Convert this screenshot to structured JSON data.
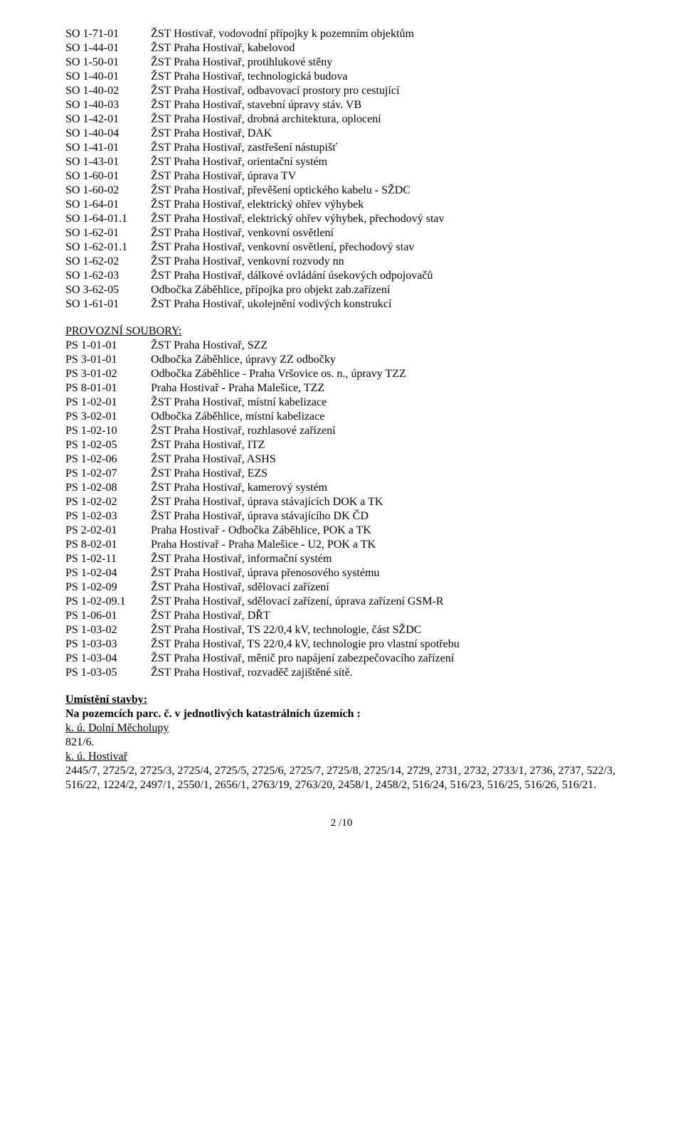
{
  "so_rows": [
    {
      "code": "SO 1-71-01",
      "desc": "ŽST Hostivař, vodovodní přípojky k pozemním objektům"
    },
    {
      "code": "SO 1-44-01",
      "desc": "ŽST Praha Hostivař, kabelovod"
    },
    {
      "code": "SO 1-50-01",
      "desc": "ŽST Praha Hostivař, protihlukové stěny"
    },
    {
      "code": "SO 1-40-01",
      "desc": "ŽST Praha Hostivař, technologická budova"
    },
    {
      "code": "SO 1-40-02",
      "desc": "ŽST Praha Hostivař, odbavovací prostory pro cestující"
    },
    {
      "code": "SO 1-40-03",
      "desc": "ŽST Praha Hostivař, stavební úpravy stáv. VB"
    },
    {
      "code": "SO 1-42-01",
      "desc": "ŽST Praha Hostivař, drobná architektura, oplocení"
    },
    {
      "code": "SO 1-40-04",
      "desc": "ŽST Praha Hostivař, DAK"
    },
    {
      "code": "SO 1-41-01",
      "desc": "ŽST Praha Hostivař, zastřešení nástupišť"
    },
    {
      "code": "SO 1-43-01",
      "desc": "ŽST Praha Hostivař, orientační systém"
    },
    {
      "code": "SO 1-60-01",
      "desc": "ŽST Praha Hostivař, úprava TV"
    },
    {
      "code": "SO 1-60-02",
      "desc": "ŽST Praha Hostivař, převěšení optického kabelu - SŽDC"
    },
    {
      "code": "SO 1-64-01",
      "desc": "ŽST Praha Hostivař, elektrický ohřev výhybek"
    },
    {
      "code": "SO 1-64-01.1",
      "desc": "ŽST Praha Hostivař, elektrický ohřev výhybek, přechodový stav"
    },
    {
      "code": "SO 1-62-01",
      "desc": "ŽST Praha Hostivař, venkovní osvětlení"
    },
    {
      "code": "SO 1-62-01.1",
      "desc": "ŽST Praha Hostivař, venkovní osvětlení, přechodový stav"
    },
    {
      "code": "SO 1-62-02",
      "desc": "ŽST Praha Hostivař, venkovní rozvody nn"
    },
    {
      "code": "SO 1-62-03",
      "desc": "ŽST Praha Hostivař, dálkové ovládání úsekových odpojovačů"
    },
    {
      "code": "SO 3-62-05",
      "desc": "Odbočka Záběhlice, přípojka pro objekt zab.zařízení"
    },
    {
      "code": "SO 1-61-01",
      "desc": "ŽST Praha Hostivař, ukolejnění vodivých konstrukcí"
    }
  ],
  "ps_header": "PROVOZNÍ SOUBORY:",
  "ps_rows": [
    {
      "code": "PS 1-01-01",
      "desc": "ŽST Praha Hostivař, SZZ"
    },
    {
      "code": "PS 3-01-01",
      "desc": "Odbočka Záběhlice, úpravy ZZ odbočky"
    },
    {
      "code": "PS 3-01-02",
      "desc": "Odbočka Záběhlice - Praha Vršovice os. n., úpravy TZZ"
    },
    {
      "code": "PS 8-01-01",
      "desc": "Praha Hostivař - Praha Malešice, TZZ"
    },
    {
      "code": "PS 1-02-01",
      "desc": "ŽST Praha Hostivař, místní kabelizace"
    },
    {
      "code": "PS 3-02-01",
      "desc": "Odbočka Záběhlice, místní kabelizace"
    },
    {
      "code": "PS 1-02-10",
      "desc": "ŽST Praha Hostivař, rozhlasové zařízení"
    },
    {
      "code": "PS 1-02-05",
      "desc": "ŽST Praha Hostivař, ITZ"
    },
    {
      "code": "PS 1-02-06",
      "desc": "ŽST Praha Hostivař, ASHS"
    },
    {
      "code": "PS 1-02-07",
      "desc": "ŽST Praha Hostivař, EZS"
    },
    {
      "code": "PS 1-02-08",
      "desc": "ŽST Praha Hostivař, kamerový systém"
    },
    {
      "code": "PS 1-02-02",
      "desc": "ŽST Praha Hostivař, úprava stávajících DOK a TK"
    },
    {
      "code": "PS 1-02-03",
      "desc": "ŽST Praha Hostivař, úprava stávajícího DK ČD"
    },
    {
      "code": "PS 2-02-01",
      "desc": "Praha Hostivař - Odbočka Záběhlice, POK a TK"
    },
    {
      "code": "PS 8-02-01",
      "desc": "Praha Hostivař - Praha Malešice - U2, POK a TK"
    },
    {
      "code": "PS 1-02-11",
      "desc": "ŽST Praha Hostivař, informační systém"
    },
    {
      "code": "PS 1-02-04",
      "desc": "ŽST Praha Hostivař, úprava přenosového systému"
    },
    {
      "code": "PS 1-02-09",
      "desc": "ŽST Praha Hostivař, sdělovací zařízení"
    },
    {
      "code": "PS 1-02-09.1",
      "desc": "ŽST Praha Hostivař, sdělovací zařízení, úprava zařízení GSM-R"
    },
    {
      "code": "PS 1-06-01",
      "desc": "ŽST Praha Hostivař, DŘT"
    },
    {
      "code": "PS 1-03-02",
      "desc": "ŽST Praha Hostivař, TS 22/0,4 kV, technologie, část SŽDC"
    },
    {
      "code": "PS 1-03-03",
      "desc": "ŽST Praha Hostivař, TS 22/0,4 kV, technologie pro vlastní spotřebu"
    },
    {
      "code": "PS 1-03-04",
      "desc": "ŽST Praha Hostivař, měnič pro napájení zabezpečovacího zařízení"
    },
    {
      "code": "PS 1-03-05",
      "desc": "ŽST Praha Hostivař, rozvaděč zajištěné sítě."
    }
  ],
  "location": {
    "heading": "Umístění stavby:",
    "heading2": "Na pozemcích parc. č. v jednotlivých katastrálních územích :",
    "ku1_label": "k. ú. Dolní Měcholupy",
    "ku1_body": "821/6.",
    "ku2_label": "k. ú. Hostivař",
    "ku2_body": "2445/7, 2725/2, 2725/3, 2725/4, 2725/5, 2725/6, 2725/7, 2725/8, 2725/14, 2729, 2731, 2732, 2733/1, 2736, 2737, 522/3, 516/22, 1224/2, 2497/1, 2550/1, 2656/1, 2763/19, 2763/20, 2458/1, 2458/2, 516/24, 516/23, 516/25, 516/26, 516/21."
  },
  "footer": "2 /10"
}
